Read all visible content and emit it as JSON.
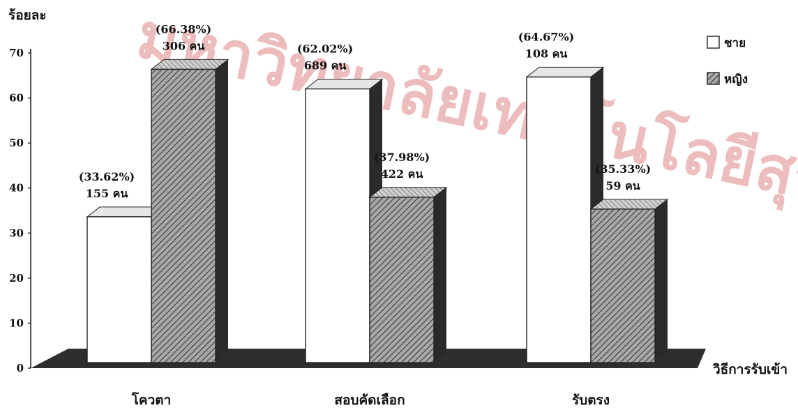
{
  "chart_data": {
    "type": "bar",
    "ylabel": "ร้อยละ",
    "xlabel": "วิธีการรับเข้า",
    "ylim": [
      0,
      70
    ],
    "yticks": [
      0,
      10,
      20,
      30,
      40,
      50,
      60,
      70
    ],
    "categories": [
      "โควตา",
      "สอบคัดเลือก",
      "รับตรง"
    ],
    "series": [
      {
        "name": "ชาย",
        "values": [
          33.62,
          62.02,
          64.67
        ],
        "pct_labels": [
          "(33.62%)",
          "(62.02%)",
          "(64.67%)"
        ],
        "count_labels": [
          "155 คน",
          "689 คน",
          "108 คน"
        ]
      },
      {
        "name": "หญิง",
        "values": [
          66.38,
          37.98,
          35.33
        ],
        "pct_labels": [
          "(66.38%)",
          "(37.98%)",
          "(35.33%)"
        ],
        "count_labels": [
          "306 คน",
          "422 คน",
          "59 คน"
        ]
      }
    ],
    "legend_position": "top-right",
    "grid": false
  },
  "watermark": "มหาวิทยาลัยเทคโนโลยีสุรนารี",
  "colors": {
    "male_fill": "#ffffff",
    "female_fill": "#9a9a9a",
    "shadow": "#2b2b2b",
    "watermark": "#cc4444"
  }
}
